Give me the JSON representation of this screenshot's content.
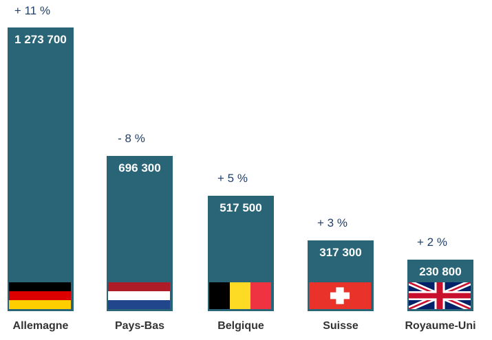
{
  "chart_data": {
    "type": "bar",
    "title": "",
    "xlabel": "",
    "ylabel": "",
    "ylim": [
      0,
      1300000
    ],
    "grid": false,
    "categories": [
      "Allemagne",
      "Pays-Bas",
      "Belgique",
      "Suisse",
      "Royaume-Uni"
    ],
    "values": [
      1273700,
      696300,
      517500,
      317300,
      230800
    ],
    "value_labels": [
      "1 273 700",
      "696 300",
      "517 500",
      "317 300",
      "230 800"
    ],
    "change_labels": [
      "+ 11 %",
      "- 8 %",
      "+ 5 %",
      "+ 3 %",
      "+ 2 %"
    ],
    "flag_icons": [
      "germany-flag-icon",
      "netherlands-flag-icon",
      "belgium-flag-icon",
      "switzerland-flag-icon",
      "united-kingdom-flag-icon"
    ],
    "bar_color": "#2a6577",
    "change_color": "#1f3f66"
  }
}
